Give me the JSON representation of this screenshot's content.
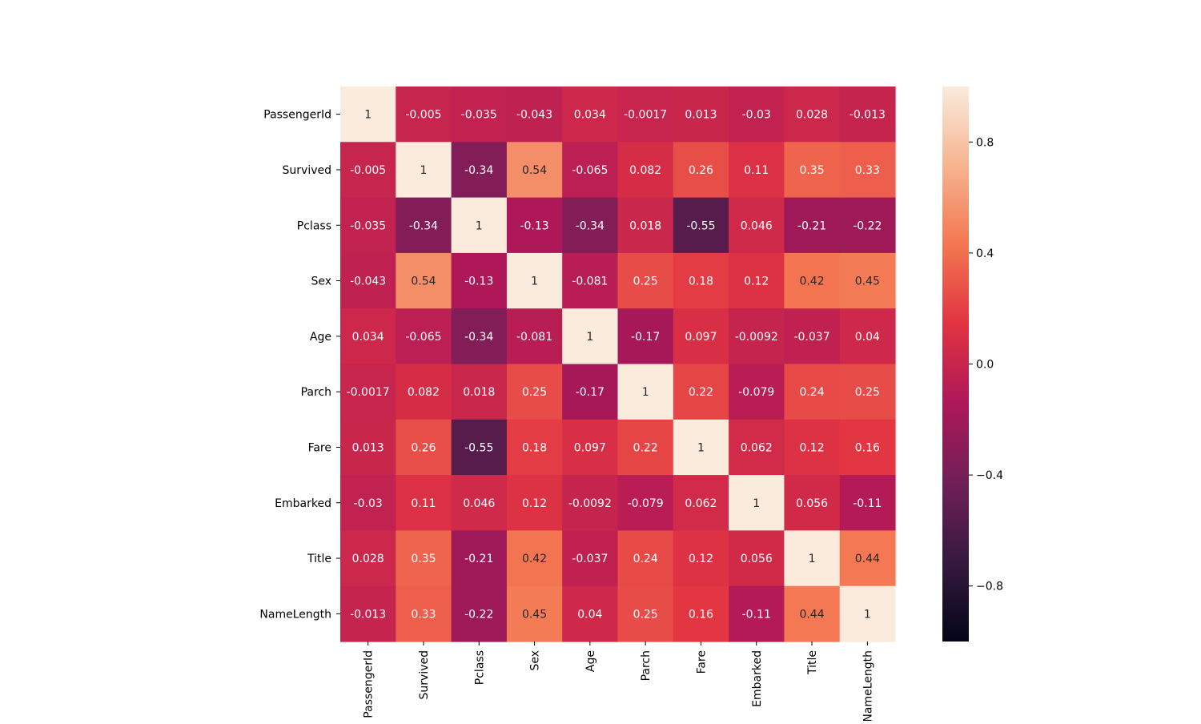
{
  "chart_data": {
    "type": "heatmap",
    "title": "",
    "xlabel": "",
    "ylabel": "",
    "categories_x": [
      "PassengerId",
      "Survived",
      "Pclass",
      "Sex",
      "Age",
      "Parch",
      "Fare",
      "Embarked",
      "Title",
      "NameLength"
    ],
    "categories_y": [
      "PassengerId",
      "Survived",
      "Pclass",
      "Sex",
      "Age",
      "Parch",
      "Fare",
      "Embarked",
      "Title",
      "NameLength"
    ],
    "values": [
      [
        1,
        -0.005,
        -0.035,
        -0.043,
        0.034,
        -0.0017,
        0.013,
        -0.03,
        0.028,
        -0.013
      ],
      [
        -0.005,
        1,
        -0.34,
        0.54,
        -0.065,
        0.082,
        0.26,
        0.11,
        0.35,
        0.33
      ],
      [
        -0.035,
        -0.34,
        1,
        -0.13,
        -0.34,
        0.018,
        -0.55,
        0.046,
        -0.21,
        -0.22
      ],
      [
        -0.043,
        0.54,
        -0.13,
        1,
        -0.081,
        0.25,
        0.18,
        0.12,
        0.42,
        0.45
      ],
      [
        0.034,
        -0.065,
        -0.34,
        -0.081,
        1,
        -0.17,
        0.097,
        -0.0092,
        -0.037,
        0.04
      ],
      [
        -0.0017,
        0.082,
        0.018,
        0.25,
        -0.17,
        1,
        0.22,
        -0.079,
        0.24,
        0.25
      ],
      [
        0.013,
        0.26,
        -0.55,
        0.18,
        0.097,
        0.22,
        1,
        0.062,
        0.12,
        0.16
      ],
      [
        -0.03,
        0.11,
        0.046,
        0.12,
        -0.0092,
        -0.079,
        0.062,
        1,
        0.056,
        -0.11
      ],
      [
        0.028,
        0.35,
        -0.21,
        0.42,
        -0.037,
        0.24,
        0.12,
        0.056,
        1,
        0.44
      ],
      [
        -0.013,
        0.33,
        -0.22,
        0.45,
        0.04,
        0.25,
        0.16,
        -0.11,
        0.44,
        1
      ]
    ],
    "value_labels": [
      [
        "1",
        "-0.005",
        "-0.035",
        "-0.043",
        "0.034",
        "-0.0017",
        "0.013",
        "-0.03",
        "0.028",
        "-0.013"
      ],
      [
        "-0.005",
        "1",
        "-0.34",
        "0.54",
        "-0.065",
        "0.082",
        "0.26",
        "0.11",
        "0.35",
        "0.33"
      ],
      [
        "-0.035",
        "-0.34",
        "1",
        "-0.13",
        "-0.34",
        "0.018",
        "-0.55",
        "0.046",
        "-0.21",
        "-0.22"
      ],
      [
        "-0.043",
        "0.54",
        "-0.13",
        "1",
        "-0.081",
        "0.25",
        "0.18",
        "0.12",
        "0.42",
        "0.45"
      ],
      [
        "0.034",
        "-0.065",
        "-0.34",
        "-0.081",
        "1",
        "-0.17",
        "0.097",
        "-0.0092",
        "-0.037",
        "0.04"
      ],
      [
        "-0.0017",
        "0.082",
        "0.018",
        "0.25",
        "-0.17",
        "1",
        "0.22",
        "-0.079",
        "0.24",
        "0.25"
      ],
      [
        "0.013",
        "0.26",
        "-0.55",
        "0.18",
        "0.097",
        "0.22",
        "1",
        "0.062",
        "0.12",
        "0.16"
      ],
      [
        "-0.03",
        "0.11",
        "0.046",
        "0.12",
        "-0.0092",
        "-0.079",
        "0.062",
        "1",
        "0.056",
        "-0.11"
      ],
      [
        "0.028",
        "0.35",
        "-0.21",
        "0.42",
        "-0.037",
        "0.24",
        "0.12",
        "0.056",
        "1",
        "0.44"
      ],
      [
        "-0.013",
        "0.33",
        "-0.22",
        "0.45",
        "0.04",
        "0.25",
        "0.16",
        "-0.11",
        "0.44",
        "1"
      ]
    ],
    "colorbar": {
      "vmin": -1,
      "vmax": 1,
      "ticks": [
        0.8,
        0.4,
        0.0,
        -0.4,
        -0.8
      ],
      "tick_labels": [
        "0.8",
        "0.4",
        "0.0",
        "−0.4",
        "−0.8"
      ],
      "colormap": "rocket",
      "colormap_stops": [
        "#03051a",
        "#36193e",
        "#701f57",
        "#ad1759",
        "#e13342",
        "#f37651",
        "#f6b48f",
        "#faebdd"
      ]
    }
  }
}
